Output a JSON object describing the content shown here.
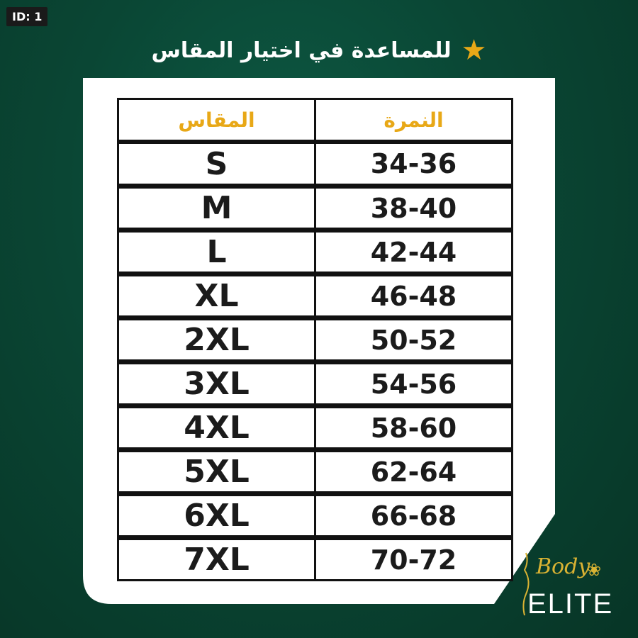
{
  "id_tag": "ID: 1",
  "title": "للمساعدة في اختيار المقاس",
  "title_icon": "star-icon",
  "accent_color": "#e8a817",
  "table": {
    "headers": {
      "size": "المقاس",
      "number": "النمرة"
    },
    "rows": [
      {
        "size": "S",
        "number": "34-36"
      },
      {
        "size": "M",
        "number": "38-40"
      },
      {
        "size": "L",
        "number": "42-44"
      },
      {
        "size": "XL",
        "number": "46-48"
      },
      {
        "size": "2XL",
        "number": "50-52"
      },
      {
        "size": "3XL",
        "number": "54-56"
      },
      {
        "size": "4XL",
        "number": "58-60"
      },
      {
        "size": "5XL",
        "number": "62-64"
      },
      {
        "size": "6XL",
        "number": "66-68"
      },
      {
        "size": "7XL",
        "number": "70-72"
      }
    ]
  },
  "logo": {
    "line1": "Body",
    "line2": "ELITE"
  }
}
